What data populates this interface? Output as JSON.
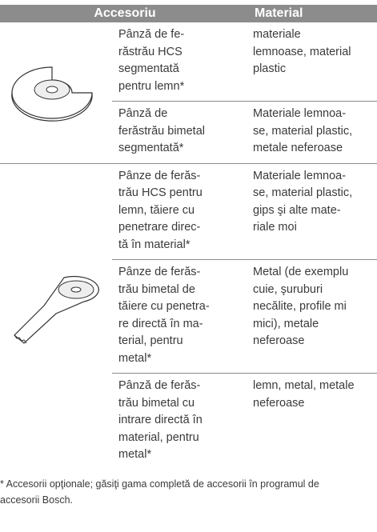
{
  "table": {
    "header": [
      "Accesoriu",
      "Material"
    ],
    "groups": [
      {
        "rows": [
          {
            "accessory": [
              "Pânză de fe-",
              "răstrău HCS",
              "segmentată",
              "pentru lemn*"
            ],
            "material": [
              "materiale",
              "lemnoase, material",
              "plastic"
            ]
          },
          {
            "accessory": [
              "Pânză de",
              "ferăstrău bimetal",
              "segmentată*"
            ],
            "material": [
              "Materiale lemnoa-",
              "se, material plastic,",
              "metale neferoase"
            ]
          }
        ]
      },
      {
        "rows": [
          {
            "accessory": [
              "Pânze de ferăs-",
              "trău HCS pentru",
              "lemn, tăiere cu",
              "penetrare direc-",
              "tă în material*"
            ],
            "material": [
              "Materiale lemnoa-",
              "se, material plastic,",
              "gips şi alte mate-",
              "riale moi"
            ]
          },
          {
            "accessory": [
              "Pânze de ferăs-",
              "trău bimetal de",
              "tăiere cu penetra-",
              "re directă în ma-",
              "terial, pentru",
              "metal*"
            ],
            "material": [
              "Metal (de exemplu",
              "cuie, şuruburi",
              "necălite, profile mi",
              "mici), metale",
              "neferoase"
            ]
          },
          {
            "accessory": [
              "Pânză de ferăs-",
              "trău bimetal cu",
              "intrare directă în",
              "material, pentru",
              "metal*"
            ],
            "material": [
              "lemn, metal, metale",
              "neferoase"
            ]
          }
        ]
      }
    ]
  },
  "footnote": [
    "* Accesorii opţionale; găsiţi gama completă de accesorii în programul de",
    "accesorii Bosch."
  ]
}
